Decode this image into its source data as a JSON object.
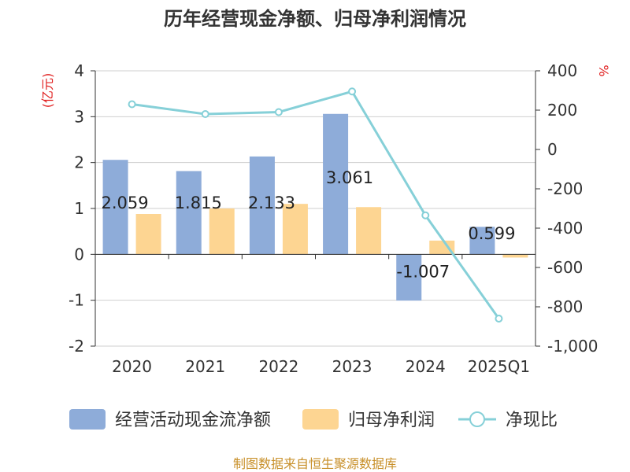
{
  "chart_data": {
    "type": "bar",
    "title": "历年经营现金净额、归母净利润情况",
    "left_unit": "(亿元)",
    "right_unit": "%",
    "categories": [
      "2020",
      "2021",
      "2022",
      "2023",
      "2024",
      "2025Q1"
    ],
    "ylim_left": [
      -2,
      4
    ],
    "left_ticks": [
      "-2",
      "-1",
      "0",
      "1",
      "2",
      "3",
      "4"
    ],
    "ylim_right": [
      -1000,
      400
    ],
    "right_ticks": [
      "-1,000",
      "-800",
      "-600",
      "-400",
      "-200",
      "0",
      "200",
      "400"
    ],
    "grid": true,
    "legend_position": "bottom",
    "series": [
      {
        "name": "经营活动现金流净额",
        "type": "bar",
        "axis": "left",
        "color": "#8eacd9",
        "values": [
          2.059,
          1.815,
          2.133,
          3.061,
          -1.007,
          0.599
        ],
        "labels": [
          "2.059",
          "1.815",
          "2.133",
          "3.061",
          "-1.007",
          "0.599"
        ]
      },
      {
        "name": "归母净利润",
        "type": "bar",
        "axis": "left",
        "color": "#fdd592",
        "values": [
          0.88,
          1.0,
          1.1,
          1.03,
          0.3,
          -0.07
        ]
      },
      {
        "name": "净现比",
        "type": "line",
        "axis": "right",
        "color": "#86d0d8",
        "values": [
          230,
          180,
          190,
          295,
          -335,
          -860
        ]
      }
    ],
    "source": "制图数据来自恒生聚源数据库"
  }
}
